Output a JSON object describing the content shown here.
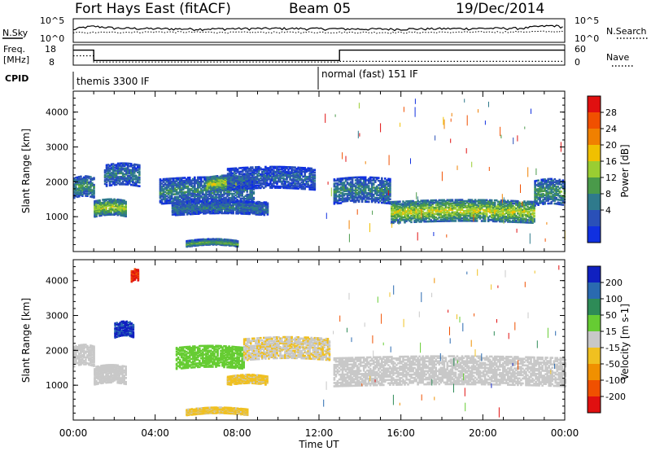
{
  "header": {
    "station": "Fort Hays East (fitACF)",
    "beam": "Beam 05",
    "date": "19/Dec/2014"
  },
  "noise_panel": {
    "left_label": "N.Sky",
    "right_label": "N.Search",
    "left_ticks": [
      "10^5",
      "10^0"
    ],
    "right_ticks": [
      "10^5",
      "10^0"
    ]
  },
  "freq_panel": {
    "left_label_1": "Freq.",
    "left_label_2": "[MHz]",
    "right_label": "Nave",
    "left_ticks": [
      "18",
      "8"
    ],
    "right_ticks": [
      "60",
      "0"
    ]
  },
  "cpid": {
    "label": "CPID",
    "modes": [
      {
        "name": "themis 3300 IF",
        "start_hour": 0,
        "end_hour": 12
      },
      {
        "name": "normal (fast) 151 IF",
        "start_hour": 12,
        "end_hour": 24
      }
    ]
  },
  "x_axis": {
    "label": "Time UT",
    "ticks": [
      "00:00",
      "04:00",
      "08:00",
      "12:00",
      "16:00",
      "20:00",
      "00:00"
    ]
  },
  "power_panel": {
    "ylabel": "Slant Range [km]",
    "yticks": [
      "4000",
      "3000",
      "2000",
      "1000"
    ],
    "colorbar_label": "Power [dB]",
    "colorbar_ticks": [
      "28",
      "24",
      "20",
      "16",
      "12",
      "8",
      "4"
    ]
  },
  "velocity_panel": {
    "ylabel": "Slant Range [km]",
    "yticks": [
      "4000",
      "3000",
      "2000",
      "1000"
    ],
    "colorbar_label": "Velocity [m s-1]",
    "colorbar_ticks": [
      "200",
      "100",
      "50",
      "15",
      "-15",
      "-50",
      "-100",
      "-200"
    ]
  },
  "colors": {
    "power_scale": [
      "#1030e0",
      "#2a50b8",
      "#2f7a8c",
      "#4a9a4a",
      "#9acd32",
      "#f0c000",
      "#f08000",
      "#f05000",
      "#e01010"
    ],
    "velocity_scale": [
      "#1020c0",
      "#2a6ab0",
      "#2e8b57",
      "#66cc33",
      "#c8c8c8",
      "#f0c020",
      "#f09000",
      "#f05000",
      "#e01010"
    ]
  },
  "chart_data": [
    {
      "type": "line",
      "title": "N.Sky / N.Search",
      "x_unit": "hours UT",
      "x_range": [
        0,
        24
      ],
      "y_scale": "log",
      "series": [
        {
          "name": "N.Sky",
          "x": [
            0,
            1,
            2,
            4,
            6,
            8,
            10,
            12,
            14,
            16,
            18,
            20,
            22,
            23.5,
            24
          ],
          "y": [
            300,
            2000,
            800,
            600,
            500,
            600,
            700,
            600,
            500,
            500,
            600,
            700,
            800,
            3000,
            1000
          ]
        },
        {
          "name": "N.Search",
          "x": [
            0,
            4,
            8,
            12,
            16,
            20,
            24
          ],
          "y": [
            100,
            150,
            120,
            130,
            110,
            140,
            200
          ]
        }
      ]
    },
    {
      "type": "line",
      "title": "Freq. / Nave",
      "x_unit": "hours UT",
      "x_range": [
        0,
        24
      ],
      "series": [
        {
          "name": "Freq. [MHz]",
          "x": [
            0,
            1,
            1,
            13,
            13,
            24
          ],
          "y": [
            16,
            16,
            10.5,
            10.5,
            16,
            16
          ]
        },
        {
          "name": "Nave",
          "x": [
            0,
            1,
            1,
            13,
            13,
            24
          ],
          "y": [
            30,
            30,
            10,
            10,
            12,
            12
          ]
        }
      ]
    },
    {
      "type": "heatmap",
      "title": "Power [dB]",
      "xlabel": "Time UT",
      "ylabel": "Slant Range [km]",
      "xlim_hours": [
        0,
        24
      ],
      "ylim_km": [
        0,
        4600
      ],
      "zlim": [
        0,
        32
      ],
      "features": [
        {
          "t0": 0,
          "t1": 1.0,
          "range_km": 1850,
          "half_width_km": 280,
          "level": 12
        },
        {
          "t0": 1.0,
          "t1": 2.6,
          "range_km": 1250,
          "half_width_km": 220,
          "level": 17
        },
        {
          "t0": 1.5,
          "t1": 3.2,
          "range_km": 2200,
          "half_width_km": 300,
          "level": 9
        },
        {
          "t0": 4.2,
          "t1": 8.8,
          "range_km": 1750,
          "half_width_km": 350,
          "level": 10
        },
        {
          "t0": 6.5,
          "t1": 8.3,
          "range_km": 1950,
          "half_width_km": 200,
          "level": 18
        },
        {
          "t0": 4.8,
          "t1": 9.5,
          "range_km": 1250,
          "half_width_km": 180,
          "level": 9
        },
        {
          "t0": 5.5,
          "t1": 8.0,
          "range_km": 250,
          "half_width_km": 80,
          "level": 14
        },
        {
          "t0": 7.5,
          "t1": 11.8,
          "range_km": 2100,
          "half_width_km": 300,
          "level": 7
        },
        {
          "t0": 12.7,
          "t1": 15.5,
          "range_km": 1750,
          "half_width_km": 350,
          "level": 10
        },
        {
          "t0": 15.5,
          "t1": 22.5,
          "range_km": 1150,
          "half_width_km": 300,
          "level": 18
        },
        {
          "t0": 22.5,
          "t1": 24,
          "range_km": 1700,
          "half_width_km": 350,
          "level": 12
        }
      ]
    },
    {
      "type": "heatmap",
      "title": "Velocity [m s-1]",
      "xlabel": "Time UT",
      "ylabel": "Slant Range [km]",
      "xlim_hours": [
        0,
        24
      ],
      "ylim_km": [
        0,
        4600
      ],
      "zlim": [
        -250,
        250
      ],
      "features": [
        {
          "t0": 0,
          "t1": 1.0,
          "range_km": 1850,
          "half_width_km": 280,
          "value": 0
        },
        {
          "t0": 1.0,
          "t1": 2.6,
          "range_km": 1300,
          "half_width_km": 250,
          "value": 0
        },
        {
          "t0": 2.0,
          "t1": 2.9,
          "range_km": 2600,
          "half_width_km": 200,
          "value": 200
        },
        {
          "t0": 2.8,
          "t1": 3.2,
          "range_km": 4150,
          "half_width_km": 150,
          "value": -200
        },
        {
          "t0": 5.0,
          "t1": 8.3,
          "range_km": 1800,
          "half_width_km": 300,
          "value": 60
        },
        {
          "t0": 7.5,
          "t1": 9.5,
          "range_km": 1150,
          "half_width_km": 120,
          "value": -40
        },
        {
          "t0": 5.5,
          "t1": 8.5,
          "range_km": 250,
          "half_width_km": 80,
          "value": -40
        },
        {
          "t0": 8.3,
          "t1": 12.5,
          "range_km": 2050,
          "half_width_km": 300,
          "value": -20
        },
        {
          "t0": 12.7,
          "t1": 24,
          "range_km": 1400,
          "half_width_km": 400,
          "value": 0
        }
      ]
    }
  ]
}
